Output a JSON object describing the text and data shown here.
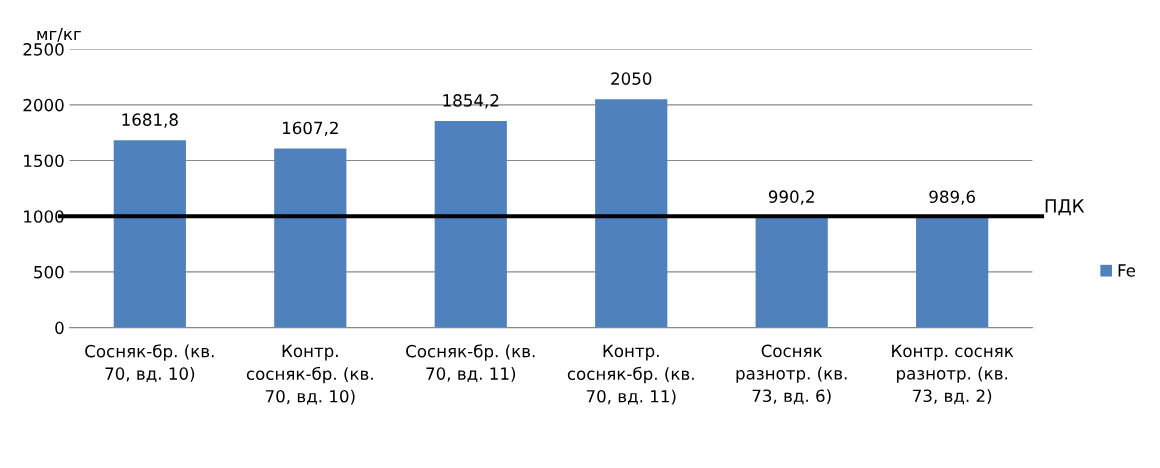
{
  "chart_data": {
    "type": "bar",
    "ylabel": "мг/кг",
    "categories": [
      "Сосняк-бр. (кв. 70, вд. 10)",
      "Контр. сосняк-бр. (кв. 70, вд. 10)",
      "Сосняк-бр. (кв. 70, вд. 11)",
      "Контр. сосняк-бр. (кв. 70, вд. 11)",
      "Сосняк разнотр. (кв. 73, вд. 6)",
      "Контр. сосняк разнотр. (кв. 73, вд. 2)"
    ],
    "series": [
      {
        "name": "Fe",
        "color": "#4f81bd",
        "values": [
          1681.8,
          1607.2,
          1854.2,
          2050,
          990.2,
          989.6
        ]
      }
    ],
    "value_labels": [
      "1681,8",
      "1607,2",
      "1854,2",
      "2050",
      "990,2",
      "989,6"
    ],
    "ylim": [
      0,
      2500
    ],
    "yticks": [
      0,
      500,
      1000,
      1500,
      2000,
      2500
    ],
    "ref_lines": [
      {
        "axis": "y",
        "value": 1000,
        "label": "ПДК",
        "color": "#000000"
      }
    ],
    "grid": "y",
    "legend": "right"
  }
}
